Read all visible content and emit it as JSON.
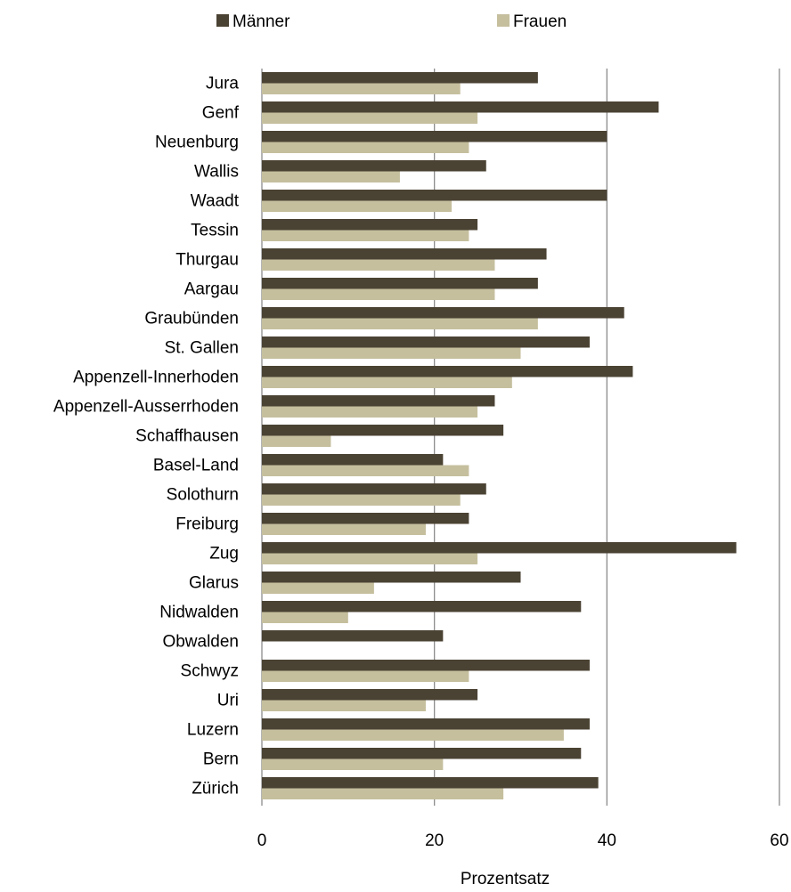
{
  "chart_data": {
    "type": "bar",
    "orientation": "horizontal",
    "title": "",
    "xlabel": "Prozentsatz",
    "ylabel": "",
    "xlim": [
      0,
      60
    ],
    "xticks": [
      0,
      20,
      40,
      60
    ],
    "grid": true,
    "legend_position": "top",
    "categories": [
      "Jura",
      "Genf",
      "Neuenburg",
      "Wallis",
      "Waadt",
      "Tessin",
      "Thurgau",
      "Aargau",
      "Graubünden",
      "St. Gallen",
      "Appenzell-Innerhoden",
      "Appenzell-Ausserrhoden",
      "Schaffhausen",
      "Basel-Land",
      "Solothurn",
      "Freiburg",
      "Zug",
      "Glarus",
      "Nidwalden",
      "Obwalden",
      "Schwyz",
      "Uri",
      "Luzern",
      "Bern",
      "Zürich"
    ],
    "series": [
      {
        "name": "Männer",
        "color": "#4a4233",
        "values": [
          32,
          46,
          40,
          26,
          40,
          25,
          33,
          32,
          42,
          38,
          43,
          27,
          28,
          21,
          26,
          24,
          55,
          30,
          37,
          21,
          38,
          25,
          38,
          37,
          39
        ]
      },
      {
        "name": "Frauen",
        "color": "#c5bf9e",
        "values": [
          23,
          25,
          24,
          16,
          22,
          24,
          27,
          27,
          32,
          30,
          29,
          25,
          8,
          24,
          23,
          19,
          25,
          13,
          10,
          0,
          24,
          19,
          35,
          21,
          28
        ]
      }
    ]
  }
}
